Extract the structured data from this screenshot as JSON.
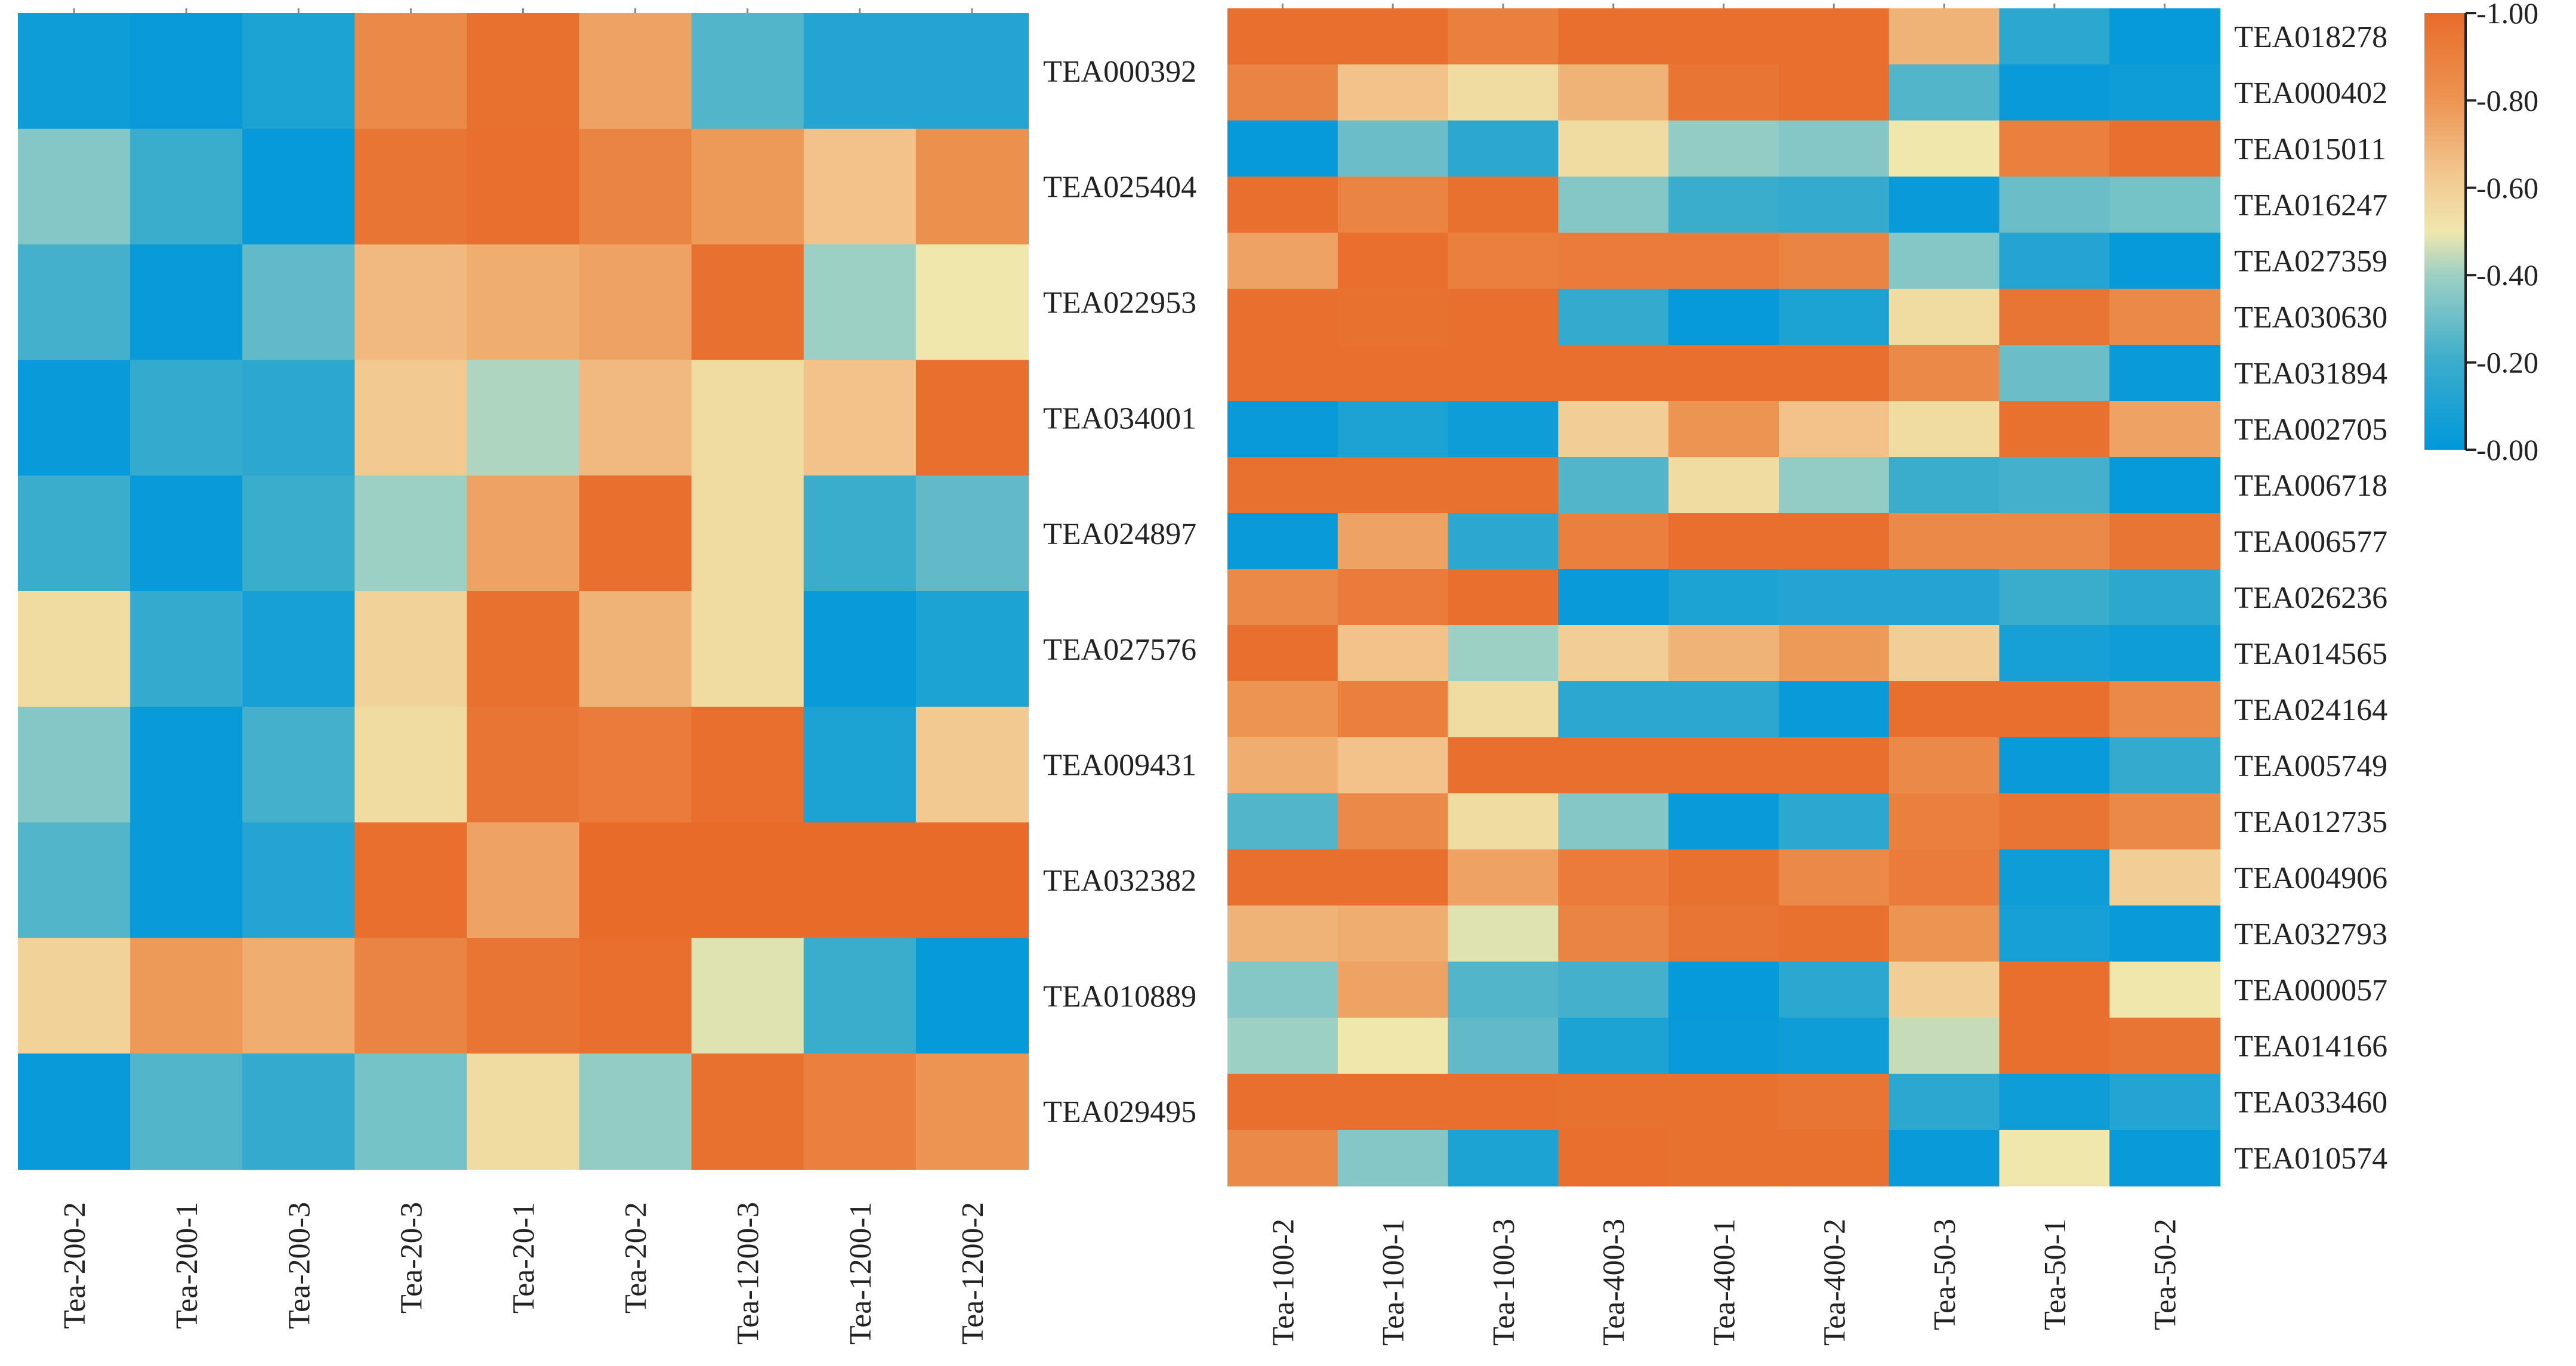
{
  "chart_data": [
    {
      "type": "heatmap",
      "title": "",
      "columns": [
        "Tea-200-2",
        "Tea-200-1",
        "Tea-200-3",
        "Tea-20-3",
        "Tea-20-1",
        "Tea-20-2",
        "Tea-1200-3",
        "Tea-1200-1",
        "Tea-1200-2"
      ],
      "rows": [
        "TEA000392",
        "TEA025404",
        "TEA022953",
        "TEA034001",
        "TEA024897",
        "TEA027576",
        "TEA009431",
        "TEA032382",
        "TEA010889",
        "TEA029495"
      ],
      "values": [
        [
          0.05,
          0.03,
          0.1,
          0.85,
          0.97,
          0.75,
          0.25,
          0.12,
          0.12
        ],
        [
          0.35,
          0.2,
          0.02,
          0.95,
          0.98,
          0.88,
          0.78,
          0.65,
          0.82
        ],
        [
          0.22,
          0.03,
          0.28,
          0.68,
          0.72,
          0.75,
          0.97,
          0.4,
          0.5
        ],
        [
          0.03,
          0.18,
          0.15,
          0.62,
          0.42,
          0.68,
          0.55,
          0.65,
          0.98
        ],
        [
          0.2,
          0.03,
          0.2,
          0.4,
          0.75,
          0.98,
          0.55,
          0.2,
          0.28
        ],
        [
          0.55,
          0.18,
          0.08,
          0.58,
          0.97,
          0.7,
          0.55,
          0.03,
          0.1
        ],
        [
          0.35,
          0.03,
          0.22,
          0.55,
          0.95,
          0.92,
          0.98,
          0.1,
          0.62
        ],
        [
          0.25,
          0.03,
          0.12,
          0.98,
          0.75,
          1.0,
          1.0,
          1.0,
          1.0
        ],
        [
          0.58,
          0.78,
          0.72,
          0.88,
          0.95,
          0.98,
          0.48,
          0.2,
          0.02
        ],
        [
          0.03,
          0.25,
          0.18,
          0.32,
          0.55,
          0.38,
          0.97,
          0.9,
          0.8
        ]
      ]
    },
    {
      "type": "heatmap",
      "title": "",
      "columns": [
        "Tea-100-2",
        "Tea-100-1",
        "Tea-100-3",
        "Tea-400-3",
        "Tea-400-1",
        "Tea-400-2",
        "Tea-50-3",
        "Tea-50-1",
        "Tea-50-2"
      ],
      "rows": [
        "TEA018278",
        "TEA000402",
        "TEA015011",
        "TEA016247",
        "TEA027359",
        "TEA030630",
        "TEA031894",
        "TEA002705",
        "TEA006718",
        "TEA006577",
        "TEA026236",
        "TEA014565",
        "TEA024164",
        "TEA005749",
        "TEA012735",
        "TEA004906",
        "TEA032793",
        "TEA000057",
        "TEA014166",
        "TEA033460",
        "TEA010574"
      ],
      "values": [
        [
          0.98,
          0.98,
          0.9,
          0.98,
          0.98,
          0.98,
          0.7,
          0.15,
          0.02
        ],
        [
          0.88,
          0.65,
          0.55,
          0.7,
          0.95,
          0.98,
          0.25,
          0.03,
          0.05
        ],
        [
          0.02,
          0.3,
          0.15,
          0.55,
          0.38,
          0.35,
          0.5,
          0.9,
          0.98
        ],
        [
          0.98,
          0.88,
          0.97,
          0.35,
          0.2,
          0.18,
          0.03,
          0.3,
          0.32
        ],
        [
          0.75,
          0.98,
          0.9,
          0.92,
          0.92,
          0.88,
          0.35,
          0.12,
          0.02
        ],
        [
          0.98,
          0.97,
          0.98,
          0.18,
          0.02,
          0.1,
          0.55,
          0.95,
          0.85
        ],
        [
          0.98,
          0.98,
          0.98,
          0.98,
          0.98,
          0.98,
          0.85,
          0.3,
          0.03
        ],
        [
          0.03,
          0.1,
          0.05,
          0.6,
          0.8,
          0.65,
          0.55,
          0.97,
          0.75
        ],
        [
          0.97,
          0.97,
          0.97,
          0.25,
          0.55,
          0.38,
          0.2,
          0.22,
          0.02
        ],
        [
          0.03,
          0.75,
          0.15,
          0.9,
          0.98,
          0.98,
          0.85,
          0.85,
          0.95
        ],
        [
          0.85,
          0.92,
          0.98,
          0.03,
          0.1,
          0.12,
          0.12,
          0.2,
          0.15
        ],
        [
          0.98,
          0.65,
          0.4,
          0.6,
          0.7,
          0.78,
          0.6,
          0.08,
          0.05
        ],
        [
          0.8,
          0.9,
          0.55,
          0.15,
          0.15,
          0.03,
          0.98,
          0.98,
          0.85
        ],
        [
          0.72,
          0.65,
          0.98,
          0.98,
          0.98,
          0.98,
          0.85,
          0.03,
          0.18
        ],
        [
          0.25,
          0.85,
          0.55,
          0.35,
          0.03,
          0.15,
          0.9,
          0.95,
          0.85
        ],
        [
          0.98,
          0.98,
          0.75,
          0.92,
          0.97,
          0.85,
          0.92,
          0.05,
          0.6
        ],
        [
          0.7,
          0.72,
          0.48,
          0.88,
          0.95,
          0.97,
          0.8,
          0.08,
          0.03
        ],
        [
          0.35,
          0.75,
          0.25,
          0.22,
          0.02,
          0.15,
          0.6,
          0.98,
          0.5
        ],
        [
          0.4,
          0.5,
          0.28,
          0.1,
          0.03,
          0.05,
          0.45,
          0.98,
          0.95
        ],
        [
          0.98,
          0.98,
          0.98,
          0.97,
          0.97,
          0.95,
          0.15,
          0.05,
          0.12
        ],
        [
          0.85,
          0.35,
          0.1,
          0.98,
          0.97,
          0.97,
          0.03,
          0.5,
          0.03
        ]
      ]
    }
  ],
  "legend": {
    "range": [
      0,
      1
    ],
    "tick_labels": [
      "-1.00",
      "-0.80",
      "-0.60",
      "-0.40",
      "-0.20",
      "-0.00"
    ],
    "colors": [
      "#0098db",
      "#3aaccc",
      "#9dd0c4",
      "#efe7ac",
      "#f2c28a",
      "#ec9452",
      "#e86b2a"
    ]
  }
}
